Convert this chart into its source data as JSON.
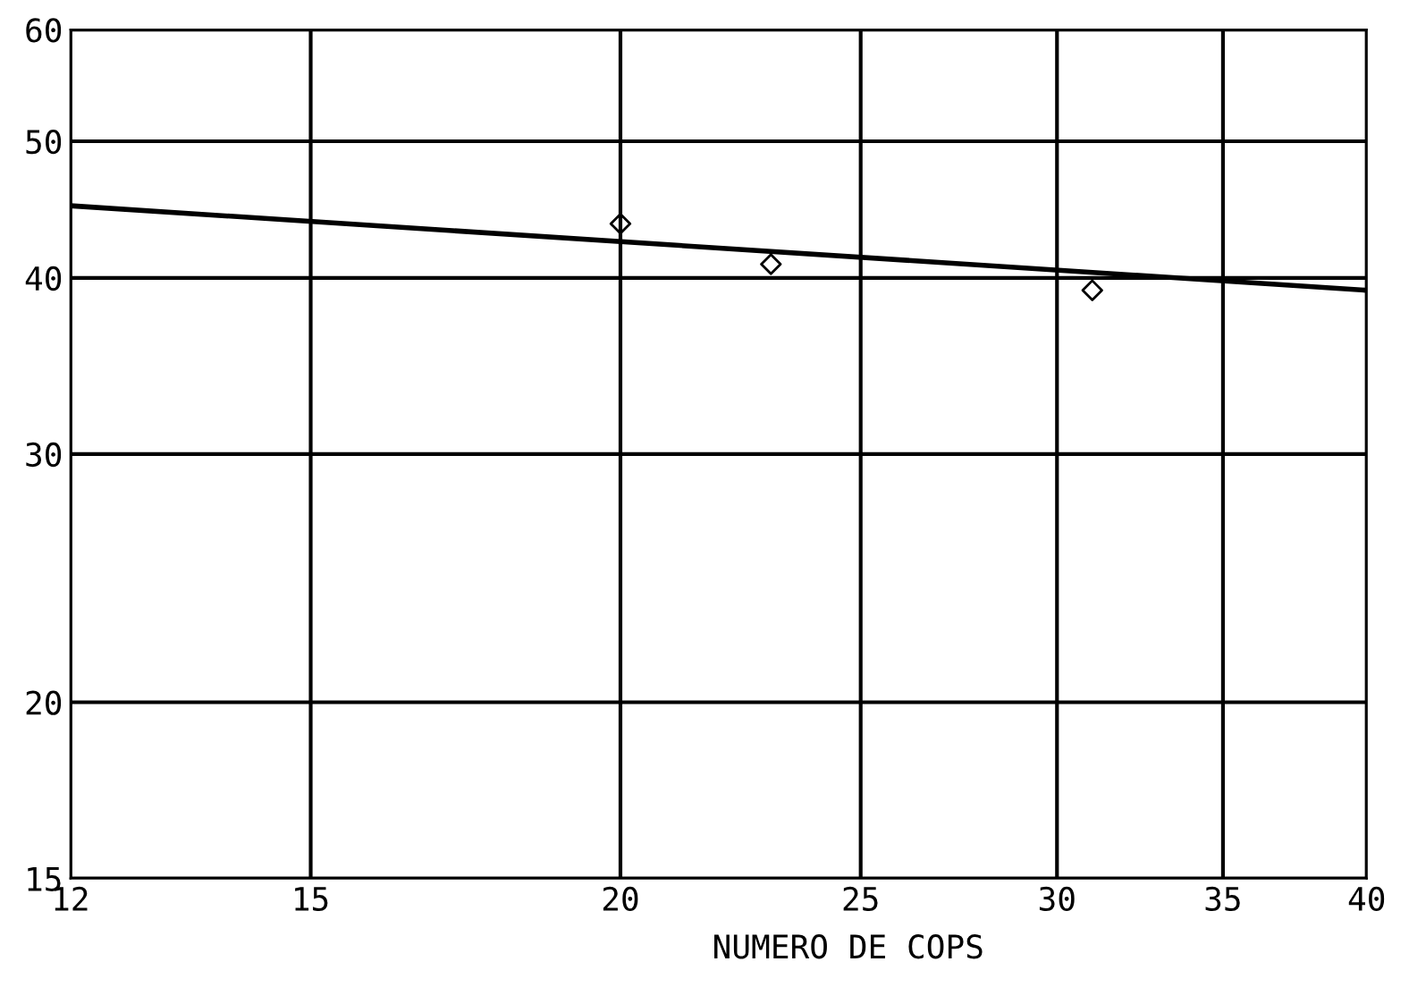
{
  "chart_data": {
    "type": "line",
    "xlabel": "NUMERO DE COPS",
    "log": "xy",
    "xlim": [
      12,
      40
    ],
    "ylim": [
      15,
      60
    ],
    "xticks": [
      12,
      15,
      20,
      25,
      30,
      35,
      40
    ],
    "yticks": [
      15,
      20,
      30,
      40,
      50,
      60
    ],
    "grid": true,
    "series": [
      {
        "color": "#000000",
        "x": [
          12,
          40
        ],
        "values": [
          45,
          39.2
        ],
        "marker": "none",
        "line_style": "solid"
      },
      {
        "type": "scatter",
        "color": "#000000",
        "x": [
          20,
          23,
          31
        ],
        "values": [
          43.7,
          40.9,
          39.2
        ],
        "marker": "diamond"
      }
    ]
  }
}
